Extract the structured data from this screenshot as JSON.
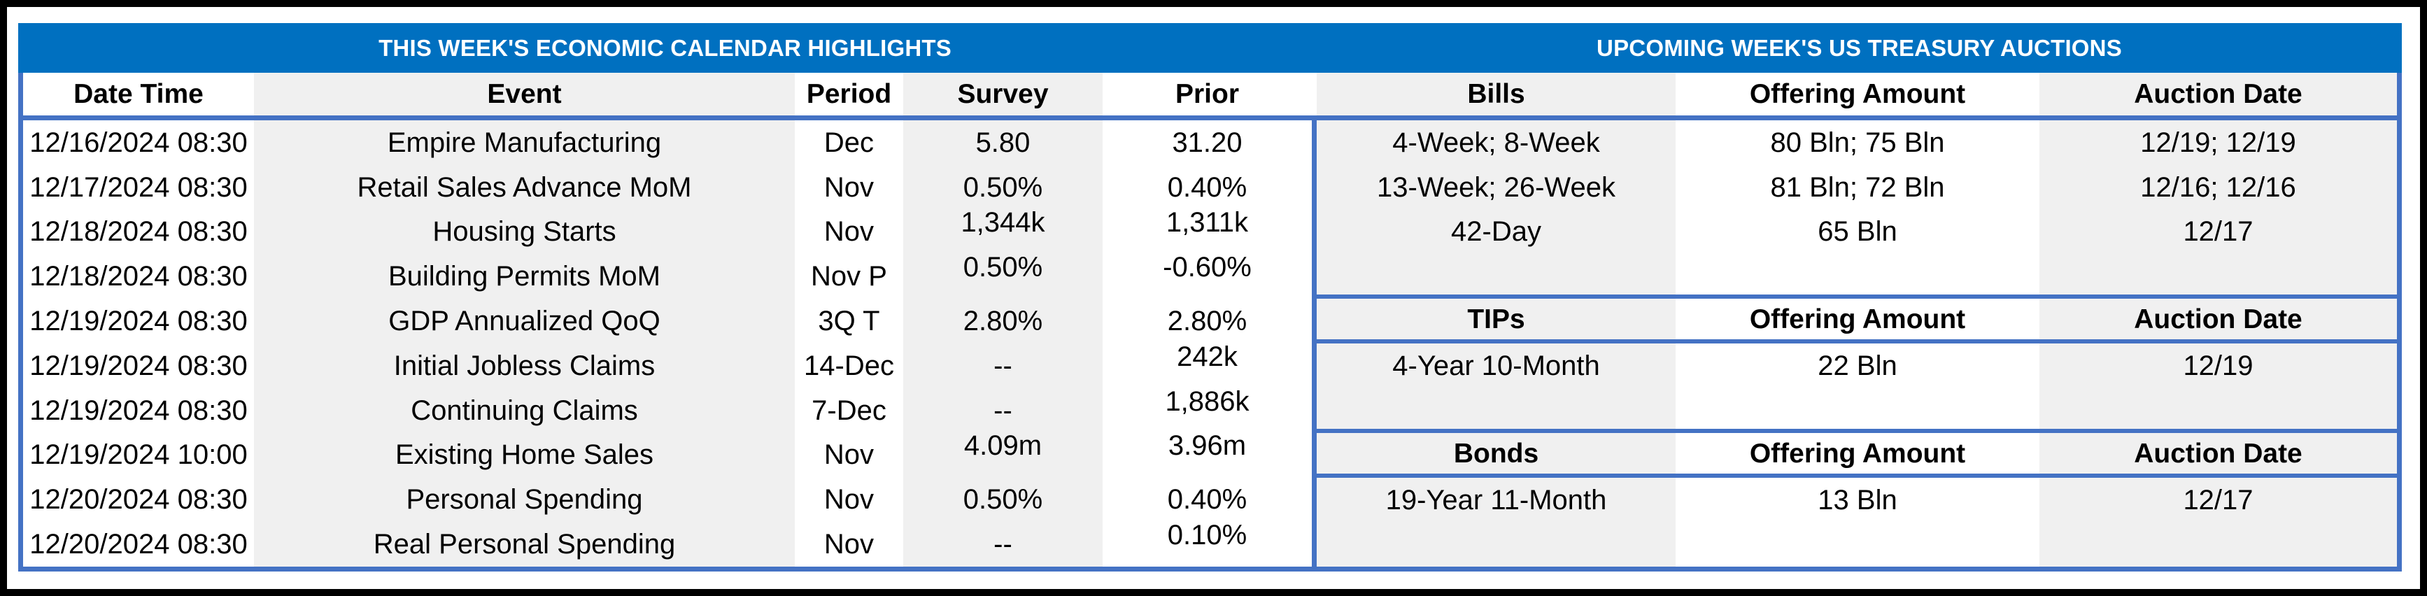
{
  "colors": {
    "band_blue": "#0070C0",
    "border_blue": "#4472C4",
    "stripe_gray": "#F0F0F0",
    "text_black": "#000000",
    "outer_border_black": "#000000",
    "background_white": "#FFFFFF"
  },
  "left_table": {
    "title": "THIS WEEK'S ECONOMIC CALENDAR HIGHLIGHTS",
    "columns": [
      "Date Time",
      "Event",
      "Period",
      "Survey",
      "Prior"
    ],
    "rows": [
      {
        "date_time": "12/16/2024 08:30",
        "event": "Empire Manufacturing",
        "period": "Dec",
        "survey": "5.80",
        "prior": "31.20",
        "survey_raised": false,
        "prior_raised": false
      },
      {
        "date_time": "12/17/2024 08:30",
        "event": "Retail Sales Advance MoM",
        "period": "Nov",
        "survey": "0.50%",
        "prior": "0.40%",
        "survey_raised": false,
        "prior_raised": false
      },
      {
        "date_time": "12/18/2024 08:30",
        "event": "Housing Starts",
        "period": "Nov",
        "survey": "1,344k",
        "prior": "1,311k",
        "survey_raised": true,
        "prior_raised": true
      },
      {
        "date_time": "12/18/2024 08:30",
        "event": "Building Permits MoM",
        "period": "Nov P",
        "survey": "0.50%",
        "prior": "-0.60%",
        "survey_raised": true,
        "prior_raised": true
      },
      {
        "date_time": "12/19/2024 08:30",
        "event": "GDP Annualized QoQ",
        "period": "3Q T",
        "survey": "2.80%",
        "prior": "2.80%",
        "survey_raised": false,
        "prior_raised": false
      },
      {
        "date_time": "12/19/2024 08:30",
        "event": "Initial Jobless Claims",
        "period": "14-Dec",
        "survey": "--",
        "prior": "242k",
        "survey_raised": false,
        "prior_raised": true
      },
      {
        "date_time": "12/19/2024 08:30",
        "event": "Continuing Claims",
        "period": "7-Dec",
        "survey": "--",
        "prior": "1,886k",
        "survey_raised": false,
        "prior_raised": true
      },
      {
        "date_time": "12/19/2024 10:00",
        "event": "Existing Home Sales",
        "period": "Nov",
        "survey": "4.09m",
        "prior": "3.96m",
        "survey_raised": true,
        "prior_raised": true
      },
      {
        "date_time": "12/20/2024 08:30",
        "event": "Personal Spending",
        "period": "Nov",
        "survey": "0.50%",
        "prior": "0.40%",
        "survey_raised": false,
        "prior_raised": false
      },
      {
        "date_time": "12/20/2024 08:30",
        "event": "Real Personal Spending",
        "period": "Nov",
        "survey": "--",
        "prior": "0.10%",
        "survey_raised": false,
        "prior_raised": true
      }
    ]
  },
  "right_table": {
    "title": "UPCOMING WEEK'S US TREASURY AUCTIONS",
    "sections": [
      {
        "name": "Bills",
        "header": [
          "Bills",
          "Offering Amount",
          "Auction Date"
        ],
        "rows": [
          [
            "4-Week; 8-Week",
            "80 Bln; 75 Bln",
            "12/19; 12/19"
          ],
          [
            "13-Week; 26-Week",
            "81 Bln; 72 Bln",
            "12/16; 12/16"
          ],
          [
            "42-Day",
            "65 Bln",
            "12/17"
          ]
        ]
      },
      {
        "name": "TIPs",
        "header": [
          "TIPs",
          "Offering Amount",
          "Auction Date"
        ],
        "rows": [
          [
            "4-Year 10-Month",
            "22 Bln",
            "12/19"
          ]
        ]
      },
      {
        "name": "Bonds",
        "header": [
          "Bonds",
          "Offering Amount",
          "Auction Date"
        ],
        "rows": [
          [
            "19-Year 11-Month",
            "13 Bln",
            "12/17"
          ]
        ]
      }
    ]
  }
}
